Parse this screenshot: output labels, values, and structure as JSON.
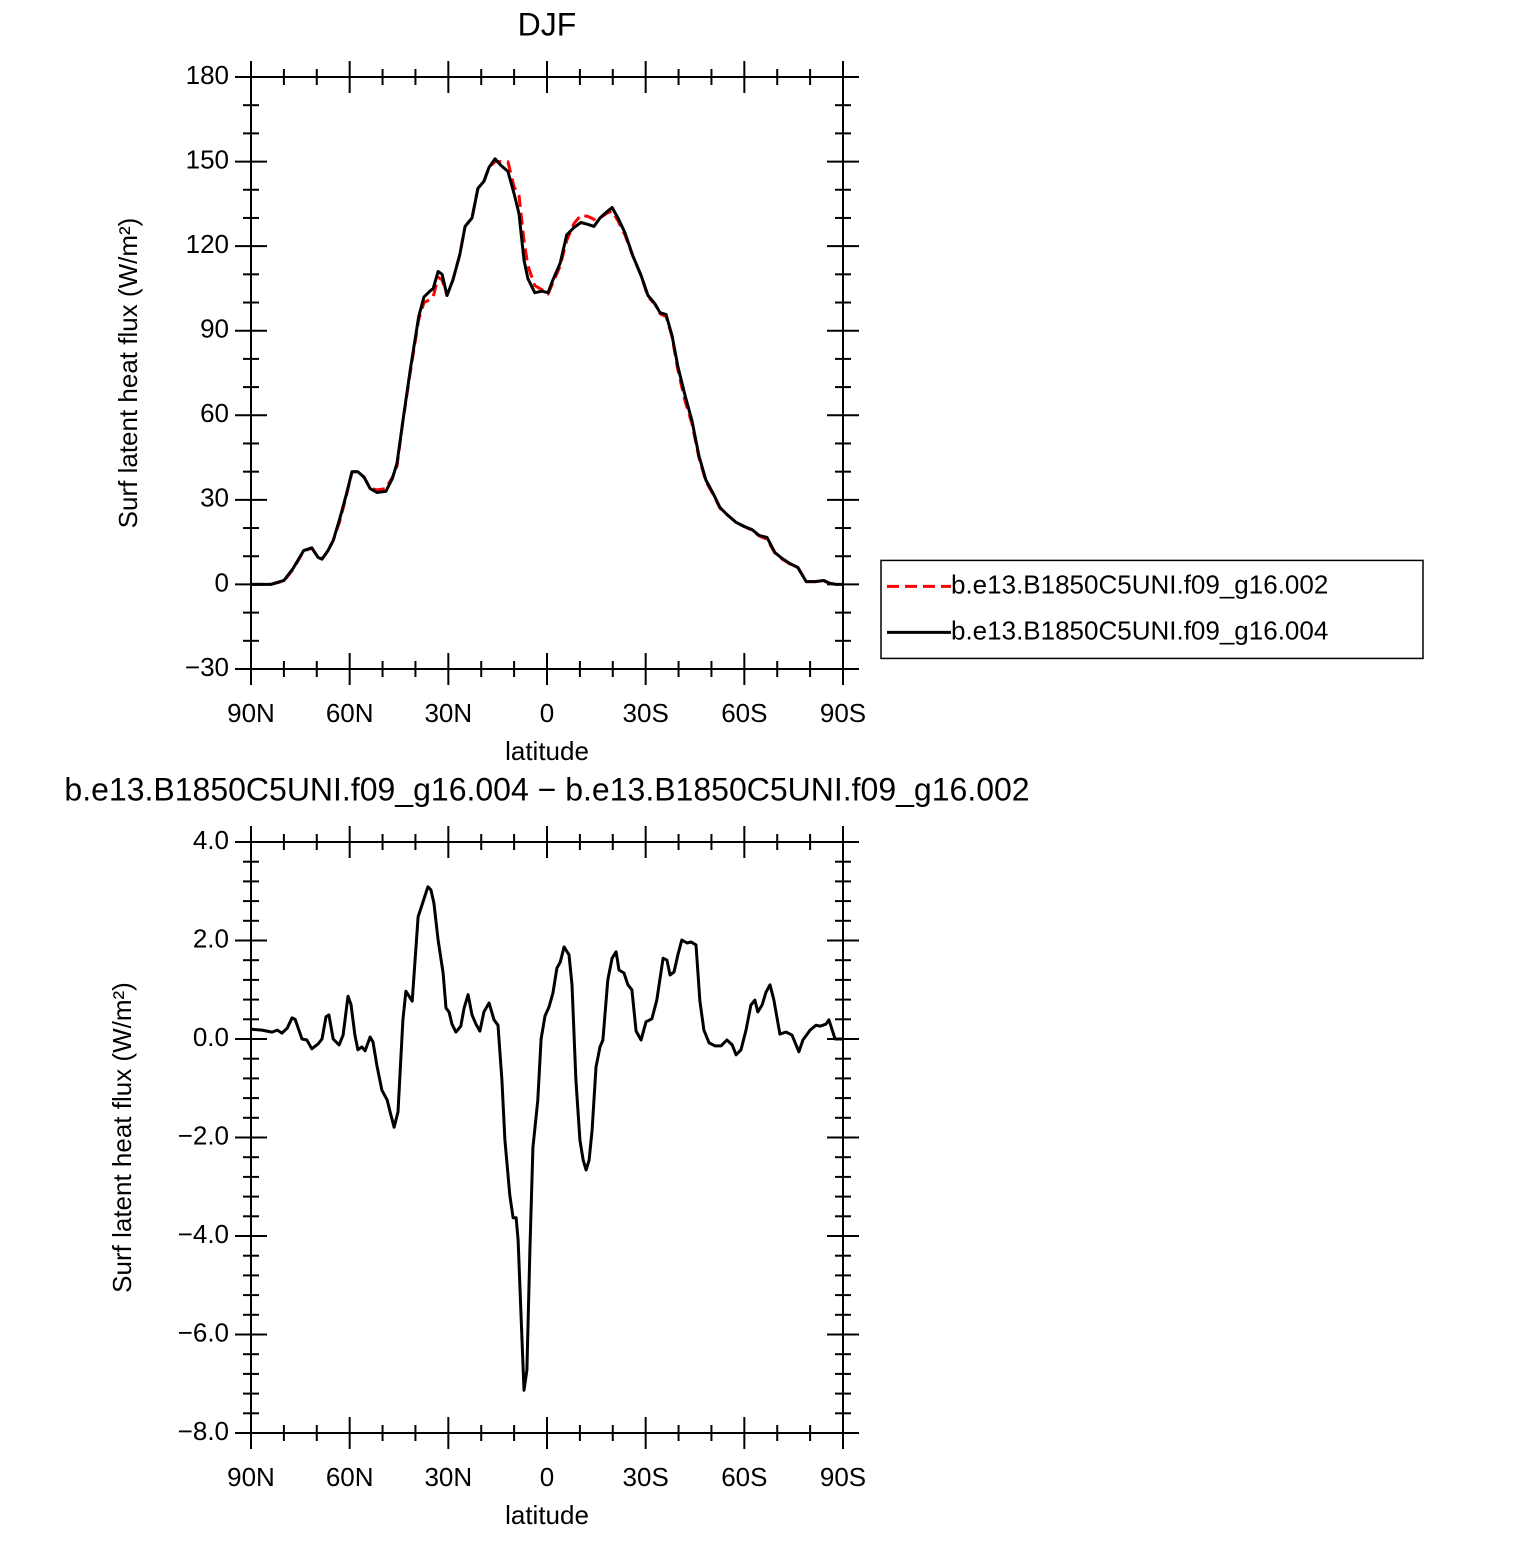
{
  "chart_data": [
    {
      "type": "line",
      "title": "DJF",
      "xlabel": "latitude",
      "ylabel": "Surf latent heat flux (W/m²)",
      "xlim": [
        90,
        -90
      ],
      "xticks": [
        {
          "value": 90,
          "label": "90N"
        },
        {
          "value": 60,
          "label": "60N"
        },
        {
          "value": 30,
          "label": "30N"
        },
        0,
        {
          "value": -30,
          "label": "30S"
        },
        {
          "value": -60,
          "label": "60S"
        },
        {
          "value": -90,
          "label": "90S"
        }
      ],
      "ylim": [
        -30,
        180
      ],
      "yticks": [
        {
          "value": -30,
          "label": "−30"
        },
        0,
        30,
        60,
        90,
        120,
        150,
        180
      ],
      "legend": "right",
      "x": [
        90,
        84,
        80,
        77.2,
        74,
        71.5,
        69.6,
        68.4,
        66.6,
        65,
        63,
        61,
        59.3,
        57.5,
        55.6,
        53.8,
        51.7,
        49,
        47,
        45.6,
        43.8,
        41.6,
        39,
        37.4,
        35.6,
        34.6,
        33.1,
        31.9,
        30.4,
        28.6,
        26.5,
        24.9,
        22.8,
        21,
        19.2,
        17.6,
        15.8,
        14,
        11.9,
        10,
        8.5,
        7,
        5.8,
        3.7,
        1.5,
        -0.3,
        -1.8,
        -4,
        -6,
        -8.2,
        -10.3,
        -12.5,
        -14.3,
        -16.1,
        -18,
        -19.8,
        -21.6,
        -23.7,
        -26.1,
        -28.6,
        -30.7,
        -32.8,
        -34.4,
        -36.2,
        -38,
        -39.8,
        -42,
        -44.1,
        -46.2,
        -48.3,
        -50.5,
        -52.6,
        -54.7,
        -57.5,
        -59.9,
        -62.3,
        -64.5,
        -66.9,
        -69.3,
        -71.5,
        -73.9,
        -76.3,
        -78.8,
        -81.5,
        -84.2,
        -86,
        -87.9,
        -90
      ],
      "series": [
        {
          "name": "b.e13.B1850C5UNI.f09_g16.002",
          "color": "#ff0000",
          "dashed": true,
          "values": [
            0,
            0,
            1.2,
            5.4,
            11.8,
            12.9,
            9.6,
            9,
            12,
            15.6,
            22.5,
            31.5,
            40,
            40,
            38,
            34.2,
            33.5,
            34,
            38,
            42,
            58,
            75,
            94,
            100,
            101,
            102,
            109,
            108,
            102.5,
            108,
            117,
            127,
            130,
            140.5,
            143,
            148,
            150,
            150,
            150,
            141,
            138,
            122,
            113,
            106,
            104.5,
            103,
            107,
            113,
            122,
            128,
            131,
            130.5,
            129.5,
            130,
            131.5,
            132.5,
            129,
            124,
            116.5,
            109.5,
            102,
            99.5,
            96,
            95,
            88,
            76,
            65,
            57,
            45,
            36.5,
            32,
            27,
            24.8,
            22,
            20.6,
            19.2,
            17.2,
            16,
            11.2,
            9,
            7.2,
            6,
            1,
            1,
            1.2,
            0.4,
            0,
            0
          ]
        },
        {
          "name": "b.e13.B1850C5UNI.f09_g16.004",
          "color": "#000000",
          "dashed": false,
          "values": [
            0,
            0,
            1.4,
            5.7,
            12,
            13,
            9.6,
            9,
            12,
            15.6,
            23.4,
            32,
            40,
            40,
            38,
            34,
            32.6,
            33,
            37.6,
            43,
            58,
            76,
            95,
            102,
            104,
            105,
            111,
            110,
            102.5,
            108,
            117,
            127,
            130,
            140.5,
            143,
            148,
            151,
            148.6,
            146.5,
            138.6,
            131.5,
            115,
            108.5,
            103.5,
            104,
            103.5,
            108,
            114,
            124,
            126.6,
            128.4,
            127.7,
            127,
            130,
            132,
            133.7,
            130,
            124.8,
            116.6,
            109.6,
            102.5,
            99.6,
            96.4,
            95.7,
            88.3,
            77.3,
            67,
            58,
            45.7,
            37,
            32.3,
            27.3,
            24.8,
            22,
            20.6,
            19.5,
            17.4,
            16.7,
            11.3,
            9.2,
            7.4,
            6,
            1,
            1,
            1.4,
            0.4,
            0,
            0
          ]
        }
      ]
    },
    {
      "type": "line",
      "title": "b.e13.B1850C5UNI.f09_g16.004 − b.e13.B1850C5UNI.f09_g16.002",
      "xlabel": "latitude",
      "ylabel": "Surf latent heat flux (W/m²)",
      "xlim": [
        90,
        -90
      ],
      "xticks": [
        {
          "value": 90,
          "label": "90N"
        },
        {
          "value": 60,
          "label": "60N"
        },
        {
          "value": 30,
          "label": "30N"
        },
        0,
        {
          "value": -30,
          "label": "30S"
        },
        {
          "value": -60,
          "label": "60S"
        },
        {
          "value": -90,
          "label": "90S"
        }
      ],
      "ylim": [
        -8,
        4
      ],
      "yticks": [
        {
          "value": -8,
          "label": "−8.0"
        },
        {
          "value": -6,
          "label": "−6.0"
        },
        {
          "value": -4,
          "label": "−4.0"
        },
        {
          "value": -2,
          "label": "−2.0"
        },
        {
          "value": 0,
          "label": "0.0"
        },
        {
          "value": 2,
          "label": "2.0"
        },
        {
          "value": 4,
          "label": "4.0"
        }
      ],
      "x": [
        90,
        86.7,
        83.6,
        82,
        80.6,
        79,
        77.5,
        76.6,
        74.5,
        73,
        71.5,
        69.6,
        68.4,
        67.2,
        66.3,
        65,
        63.2,
        62,
        60.5,
        59.6,
        58.4,
        57.5,
        56.3,
        55.3,
        53.8,
        52.9,
        51.7,
        50.2,
        48.6,
        47.7,
        46.5,
        45.3,
        43.8,
        42.9,
        41,
        39.2,
        38,
        36.2,
        35.3,
        34.4,
        33.1,
        31.6,
        30.7,
        29.8,
        28.9,
        27.7,
        26.2,
        25.2,
        24,
        22.8,
        21.6,
        20.4,
        19.2,
        17.6,
        16.1,
        14.9,
        13.7,
        12.8,
        11.3,
        10.3,
        9.4,
        8.8,
        7.6,
        7,
        6.1,
        5.2,
        4.3,
        2.8,
        1.8,
        0.6,
        -0.6,
        -1.8,
        -3,
        -4,
        -5.2,
        -6.7,
        -7.6,
        -8.8,
        -10,
        -11,
        -11.9,
        -12.8,
        -13.7,
        -14.9,
        -16.1,
        -17,
        -18.5,
        -19.8,
        -21,
        -21.9,
        -23.4,
        -24.6,
        -25.8,
        -27.1,
        -28.6,
        -30.1,
        -31.9,
        -33.4,
        -35.3,
        -36.5,
        -37.4,
        -38.6,
        -39.8,
        -41,
        -42.6,
        -43.8,
        -45.3,
        -46.5,
        -47.7,
        -49.3,
        -51.1,
        -52.9,
        -54.7,
        -56.3,
        -57.5,
        -59,
        -60.5,
        -62,
        -63.2,
        -64.1,
        -65.4,
        -66.6,
        -67.8,
        -69,
        -70.8,
        -72.7,
        -74.5,
        -76.6,
        -77.8,
        -80,
        -81.8,
        -83,
        -84.8,
        -85.7,
        -87.6,
        -90
      ],
      "series": [
        {
          "color": "#000000",
          "dashed": false,
          "values": [
            0.2,
            0.18,
            0.14,
            0.18,
            0.12,
            0.22,
            0.43,
            0.4,
            0,
            -0.02,
            -0.2,
            -0.1,
            0,
            0.45,
            0.49,
            0,
            -0.12,
            0.08,
            0.87,
            0.7,
            0.08,
            -0.22,
            -0.16,
            -0.24,
            0.04,
            -0.06,
            -0.55,
            -1.04,
            -1.24,
            -1.48,
            -1.79,
            -1.48,
            0.39,
            0.97,
            0.77,
            2.48,
            2.72,
            3.09,
            3.03,
            2.76,
            2.01,
            1.34,
            0.63,
            0.55,
            0.3,
            0.14,
            0.26,
            0.63,
            0.9,
            0.49,
            0.3,
            0.16,
            0.55,
            0.73,
            0.39,
            0.28,
            -0.83,
            -2.05,
            -3.17,
            -3.63,
            -3.63,
            -4.08,
            -6.11,
            -7.13,
            -6.72,
            -4.28,
            -2.21,
            -1.24,
            0,
            0.47,
            0.65,
            0.93,
            1.44,
            1.56,
            1.87,
            1.71,
            1.1,
            -0.83,
            -2.05,
            -2.46,
            -2.66,
            -2.46,
            -1.85,
            -0.57,
            -0.16,
            -0.02,
            1.2,
            1.64,
            1.77,
            1.4,
            1.34,
            1.1,
            1,
            0.16,
            -0.02,
            0.35,
            0.41,
            0.79,
            1.64,
            1.6,
            1.3,
            1.36,
            1.71,
            2.01,
            1.95,
            1.97,
            1.91,
            0.77,
            0.18,
            -0.08,
            -0.14,
            -0.14,
            -0.02,
            -0.12,
            -0.32,
            -0.22,
            0.18,
            0.69,
            0.79,
            0.55,
            0.69,
            0.95,
            1.1,
            0.79,
            0.1,
            0.14,
            0.08,
            -0.26,
            -0.02,
            0.18,
            0.28,
            0.26,
            0.3,
            0.39,
            0,
            0
          ]
        }
      ]
    }
  ]
}
